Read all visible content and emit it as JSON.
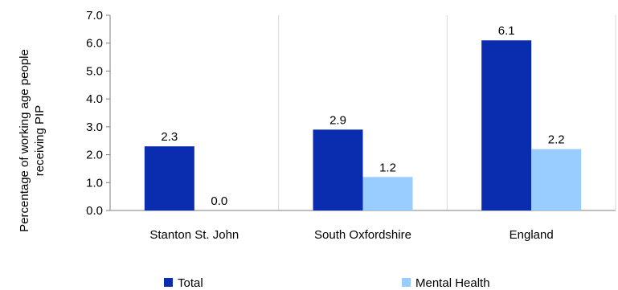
{
  "chart_data": {
    "type": "bar",
    "title": "",
    "xlabel": "",
    "ylabel_lines": [
      "Percentage of working age people",
      "receiving PIP"
    ],
    "categories": [
      "Stanton St. John",
      "South Oxfordshire",
      "England"
    ],
    "series": [
      {
        "name": "Total",
        "values": [
          2.3,
          2.9,
          6.1
        ],
        "labels": [
          "2.3",
          "2.9",
          "6.1"
        ],
        "color": "#0a2db0"
      },
      {
        "name": "Mental Health",
        "values": [
          0.0,
          1.2,
          2.2
        ],
        "labels": [
          "0.0",
          "1.2",
          "2.2"
        ],
        "color": "#99ccff"
      }
    ],
    "ylim": [
      0,
      7
    ],
    "yticks": [
      "0.0",
      "1.0",
      "2.0",
      "3.0",
      "4.0",
      "5.0",
      "6.0",
      "7.0"
    ],
    "grid": "vertical separators between categories",
    "legend_position": "bottom"
  },
  "colors": {
    "axis": "#7f7f7f",
    "grid": "#d9d9d9"
  }
}
